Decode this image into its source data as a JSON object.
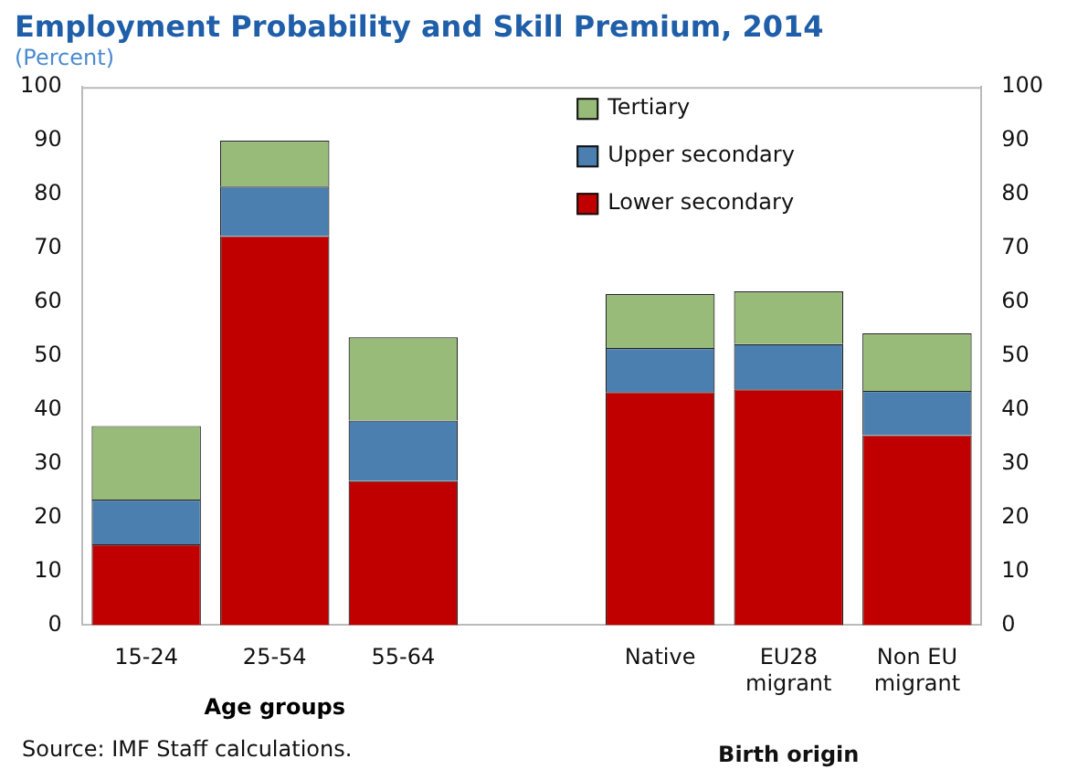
{
  "chart_data": {
    "type": "bar",
    "title": "Employment Probability and Skill Premium, 2014",
    "subtitle": "(Percent)",
    "categories": [
      "15-24",
      "25-54",
      "55-64",
      null,
      "Native",
      "EU28 migrant",
      "Non EU migrant"
    ],
    "series": [
      {
        "name": "Lower secondary",
        "color": "#c00000",
        "values": [
          15,
          72.3,
          26.8,
          null,
          43.3,
          43.8,
          35.3
        ]
      },
      {
        "name": "Upper secondary",
        "color": "#4a7fb0",
        "values": [
          8.3,
          9.2,
          11.2,
          null,
          8.2,
          8.4,
          8.2
        ]
      },
      {
        "name": "Tertiary",
        "color": "#98bb7a",
        "values": [
          13.7,
          8.5,
          15.5,
          null,
          10,
          9.8,
          10.7
        ]
      }
    ],
    "stacked": true,
    "ylim": [
      0,
      100
    ],
    "yticks": [
      0,
      10,
      20,
      30,
      40,
      50,
      60,
      70,
      80,
      90,
      100
    ],
    "y2lim": [
      0,
      100
    ],
    "y2ticks": [
      0,
      10,
      20,
      30,
      40,
      50,
      60,
      70,
      80,
      90,
      100
    ],
    "grid": false,
    "legend": "top right",
    "annotations": [
      "Age groups",
      "Birth origin",
      "Source: IMF Staff calculations."
    ]
  }
}
